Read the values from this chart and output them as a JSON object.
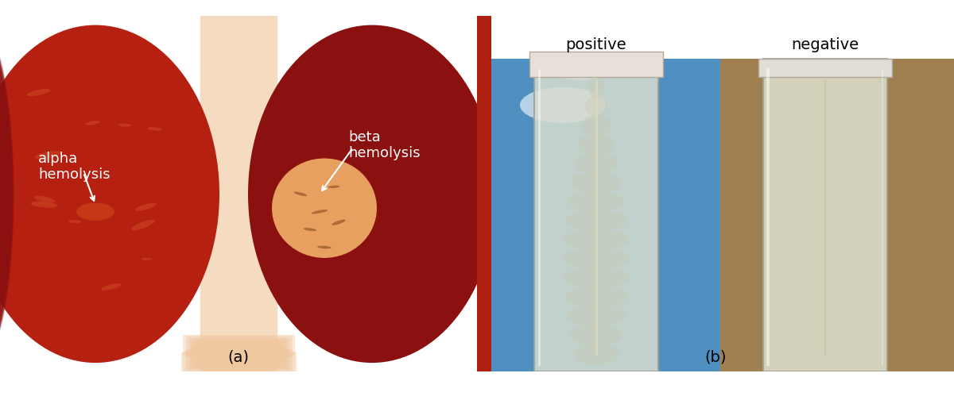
{
  "fig_width": 12.0,
  "fig_height": 5.09,
  "dpi": 100,
  "bg_color": "#ffffff",
  "panel_a_label": "(a)",
  "panel_b_label": "(b)",
  "alpha_label": "alpha\nhemolysis",
  "beta_label": "beta\nhemolysis",
  "positive_label": "positive",
  "negative_label": "negative",
  "label_fontsize": 13,
  "panel_label_fontsize": 14,
  "title_fontsize": 14,
  "blood_agar_red": "#c0200a",
  "blood_agar_dark": "#8b1010",
  "blood_agar_mid": "#b52010",
  "alpha_clearing_color": "#d4501a",
  "beta_clearing_color": "#e8a060",
  "gap_color": "#f5dcc0",
  "tube_body_color": "#e8e8d8",
  "tube_cloudy_color": "#d0d0b8",
  "tube_clear_color": "#e8e8d0",
  "positive_bg": "#5090c0",
  "negative_bg": "#a08050"
}
